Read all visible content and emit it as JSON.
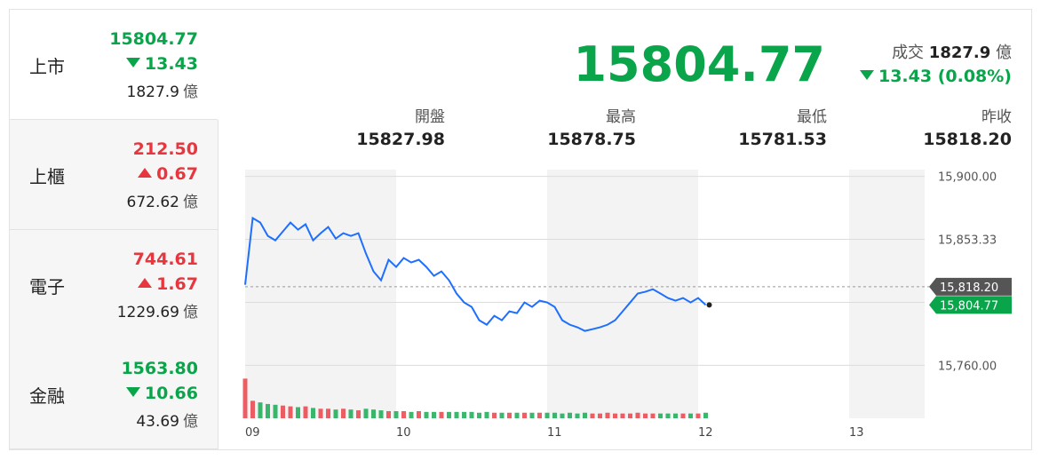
{
  "sidebar": [
    {
      "name": "上市",
      "price": 15804.77,
      "change": 13.43,
      "volume": 1827.9,
      "direction": "down",
      "color": "#0aa54a",
      "selected": true
    },
    {
      "name": "上櫃",
      "price": {
        "value": 212.5,
        "label": "212.50"
      },
      "change": 0.67,
      "volume": 672.62,
      "direction": "up",
      "color": "#e8363f",
      "selected": false
    },
    {
      "name": "電子",
      "price": 744.61,
      "change": 1.67,
      "volume": 1229.69,
      "direction": "up",
      "color": "#e8363f",
      "selected": false
    },
    {
      "name": "金融",
      "price": {
        "value": 1563.8,
        "label": "1563.80"
      },
      "change": 10.66,
      "volume": 43.69,
      "direction": "down",
      "color": "#0aa54a",
      "selected": false
    }
  ],
  "unit": "億",
  "header": {
    "price": 15804.77,
    "volume_label": "成交",
    "volume": 1827.9,
    "change": 13.43,
    "change_pct": 0.08,
    "change_pct_label": "(0.08%)",
    "direction": "down",
    "color": "#0aa54a"
  },
  "stats": [
    {
      "label": "開盤",
      "value": 15827.98
    },
    {
      "label": "最高",
      "value": 15878.75
    },
    {
      "label": "最低",
      "value": 15781.53
    },
    {
      "label": "昨收",
      "value": {
        "value": 15818.2,
        "label": "15818.20"
      }
    }
  ],
  "chart_data": {
    "type": "line",
    "x": [
      9.0,
      9.05,
      9.1,
      9.15,
      9.2,
      9.25,
      9.3,
      9.35,
      9.4,
      9.45,
      9.5,
      9.55,
      9.6,
      9.65,
      9.7,
      9.75,
      9.8,
      9.85,
      9.9,
      9.95,
      10.0,
      10.05,
      10.1,
      10.15,
      10.2,
      10.25,
      10.3,
      10.35,
      10.4,
      10.45,
      10.5,
      10.55,
      10.6,
      10.65,
      10.7,
      10.75,
      10.8,
      10.85,
      10.9,
      10.95,
      11.0,
      11.05,
      11.1,
      11.15,
      11.2,
      11.25,
      11.3,
      11.35,
      11.4,
      11.45,
      11.5,
      11.55,
      11.6,
      11.65,
      11.7,
      11.75,
      11.8,
      11.85,
      11.9,
      11.95,
      12.0,
      12.05
    ],
    "series": [
      {
        "color": "#1e6fff",
        "values": [
          15819.7,
          15869.1,
          15865.8,
          15855.9,
          15852.6,
          15859.2,
          15865.8,
          15860.5,
          15864.5,
          15852.6,
          15857.9,
          15862.5,
          15853.9,
          15857.9,
          15855.9,
          15857.9,
          15842.8,
          15829.6,
          15823.0,
          15838.2,
          15832.9,
          15839.5,
          15836.2,
          15838.2,
          15832.9,
          15826.3,
          15829.6,
          15823.0,
          15813.2,
          15806.6,
          15803.3,
          15793.4,
          15790.1,
          15796.7,
          15793.4,
          15800.0,
          15798.7,
          15806.6,
          15803.3,
          15807.9,
          15806.6,
          15803.3,
          15793.4,
          15790.1,
          15788.2,
          15785.5,
          15786.8,
          15788.2,
          15790.1,
          15793.4,
          15800.0,
          15806.6,
          15813.2,
          15814.5,
          15816.4,
          15813.2,
          15809.9,
          15807.9,
          15809.9,
          15806.6,
          15809.9,
          15804.77
        ]
      }
    ],
    "volume": [
      50,
      22,
      20,
      18,
      17,
      16,
      15,
      14,
      15,
      13,
      12,
      12,
      11,
      12,
      11,
      10,
      12,
      11,
      10,
      9,
      9,
      9,
      8,
      9,
      8,
      8,
      8,
      8,
      8,
      8,
      8,
      7,
      8,
      7,
      7,
      7,
      7,
      7,
      7,
      7,
      7,
      7,
      6,
      7,
      6,
      7,
      6,
      6,
      7,
      6,
      6,
      6,
      7,
      6,
      6,
      6,
      6,
      6,
      6,
      6,
      6,
      7
    ],
    "volume_lim": [
      0,
      56
    ],
    "up_color": "#e8363f",
    "down_color": "#0aa54a",
    "xlim": [
      9,
      13.5
    ],
    "xticks": [
      {
        "value": 9,
        "label": "09"
      },
      10,
      11,
      12,
      13
    ],
    "ylim": [
      15755,
      15905
    ],
    "yticks": [
      {
        "value": 15900,
        "label": "15,900.00"
      },
      {
        "value": 15853.33,
        "label": "15,853.33"
      },
      {
        "value": 15806.67,
        "label": null
      },
      {
        "value": 15760,
        "label": "15,760.00"
      }
    ],
    "reference": {
      "value": 15818.2,
      "label": "15,818.20"
    },
    "last": {
      "value": 15804.77,
      "label": "15,804.77"
    },
    "grid": true
  }
}
